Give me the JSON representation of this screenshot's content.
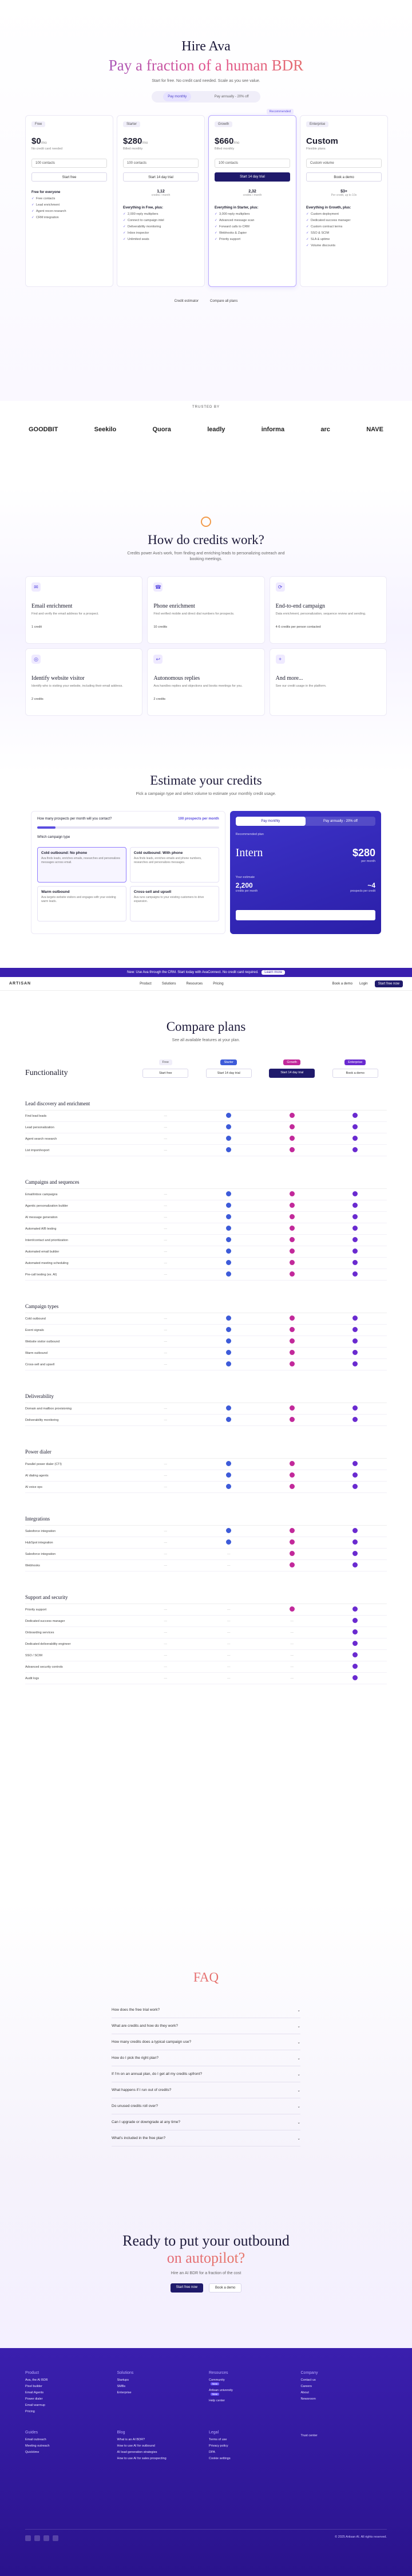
{
  "hero": {
    "title": "Hire Ava",
    "subtitle": "Pay a fraction of a human BDR",
    "description": "Start for free. No credit card needed. Scale as you see value.",
    "toggle_monthly": "Pay monthly",
    "toggle_annual": "Pay annually - 20% off",
    "recommended": "Recommended"
  },
  "plans": [
    {
      "tag": "Free",
      "price": "$0",
      "unit": "/mo",
      "sub": "No credit card needed",
      "select": "100 contacts",
      "cta": "Start free",
      "credits": "",
      "credits_sub": "",
      "feat_title": "Free for everyone",
      "features": [
        "Free contacts",
        "Lead enrichment",
        "Agent recon research",
        "CRM integration"
      ]
    },
    {
      "tag": "Starter",
      "price": "$280",
      "unit": "/mo",
      "sub": "Billed monthly",
      "select": "100 contacts",
      "cta": "Start 14 day trial",
      "credits": "1,12",
      "credits_sub": "credits / month",
      "feat_title": "Everything in Free, plus:",
      "features": [
        "2,000 reply multipliers",
        "Connect to campaign intel",
        "Deliverability monitoring",
        "Inbox inspector",
        "Unlimited seats"
      ]
    },
    {
      "tag": "Growth",
      "price": "$660",
      "unit": "/mo",
      "sub": "Billed monthly",
      "select": "100 contacts",
      "cta": "Start 14 day trial",
      "credits": "2,32",
      "credits_sub": "credits / month",
      "feat_title": "Everything in Starter, plus:",
      "features": [
        "3,000 reply multipliers",
        "Advanced message scan",
        "Forward calls to CRM",
        "Webhooks & Zapier",
        "Priority support"
      ]
    },
    {
      "tag": "Enterprise",
      "price": "Custom",
      "unit": "",
      "sub": "Flexible plans",
      "select": "Custom volume",
      "cta": "Book a demo",
      "credits": "$3+",
      "credits_sub": "Per credit, up to 10x",
      "feat_title": "Everything in Growth, plus:",
      "features": [
        "Custom deployment",
        "Dedicated success manager",
        "Custom contract terms",
        "SSO & SCIM",
        "SLA & uptime",
        "Volume discounts"
      ]
    }
  ],
  "below_plans": [
    "Credit estimator",
    "Compare all plans"
  ],
  "logos": {
    "title": "TRUSTED BY",
    "items": [
      "GOODBIT",
      "Seekilo",
      "Quora",
      "leadly",
      "informa",
      "arc",
      "NAVE"
    ]
  },
  "credits_section": {
    "title": "How do credits work?",
    "description": "Credits power Ava's work, from finding and enriching leads to personalizing outreach and booking meetings.",
    "cards": [
      {
        "icon": "✉",
        "title": "Email enrichment",
        "desc": "Find and verify the email address for a prospect.",
        "cost": "1 credit"
      },
      {
        "icon": "☎",
        "title": "Phone enrichment",
        "desc": "Find verified mobile and direct dial numbers for prospects.",
        "cost": "10 credits"
      },
      {
        "icon": "⟳",
        "title": "End-to-end campaign",
        "desc": "Data enrichment, personalization, sequence review and sending.",
        "cost": "4-6 credits per person contacted"
      },
      {
        "icon": "◎",
        "title": "Identify website visitor",
        "desc": "Identify who is visiting your website, including their email address.",
        "cost": "2 credits"
      },
      {
        "icon": "↩",
        "title": "Autonomous replies",
        "desc": "Ava handles replies and objections and books meetings for you.",
        "cost": "2 credits"
      },
      {
        "icon": "+",
        "title": "And more...",
        "desc": "See our credit usage in the platform.",
        "cost": ""
      }
    ]
  },
  "estimate": {
    "title": "Estimate your credits",
    "description": "Pick a campaign type and select volume to estimate your monthly credit usage.",
    "q1": "How many prospects per month will you contact?",
    "q1_value": "100 prospects per month",
    "slider_fraction": 0.1,
    "q2": "Which campaign type",
    "options": [
      {
        "title": "Cold outbound: No phone",
        "desc": "Ava finds leads, enriches emails, researches and personalizes messages across email."
      },
      {
        "title": "Cold outbound: With phone",
        "desc": "Ava finds leads, enriches emails and phone numbers, researches and personalizes messages."
      },
      {
        "title": "Warm outbound",
        "desc": "Ava targets website visitors and engages with your existing warm leads."
      },
      {
        "title": "Cross-sell and upsell",
        "desc": "Ava runs campaigns to your existing customers to drive expansion."
      }
    ],
    "tab_monthly": "Pay monthly",
    "tab_annual": "Pay annually - 20% off",
    "rec_label": "Recommended plan",
    "rec_plan": "Intern",
    "rec_price": "$280",
    "rec_price_sub": "per month",
    "estimate_label": "Your estimate",
    "estimate_value": "2,200",
    "estimate_sub": "credits per month",
    "estimate_multiplier": "~4",
    "multiplier_sub": "prospects per credit"
  },
  "banner": {
    "text": "New: Use Ava through the CRM. Start today with AvaConnect. No credit card required.",
    "cta": "Learn more"
  },
  "nav": {
    "logo": "ARTISAN",
    "links": [
      "Product",
      "Solutions",
      "Resources",
      "Pricing"
    ],
    "book": "Book a demo",
    "login": "Login",
    "start": "Start free now"
  },
  "compare": {
    "title": "Compare plans",
    "description": "See all available features at your plan.",
    "functionality": "Functionality",
    "columns": [
      {
        "label": "Free",
        "cta": "Start free"
      },
      {
        "label": "Starter",
        "cta": "Start 14 day trial"
      },
      {
        "label": "Growth",
        "cta": "Start 14 day trial"
      },
      {
        "label": "Enterprise",
        "cta": "Book a demo"
      }
    ],
    "groups": [
      {
        "title": "Lead discovery and enrichment",
        "rows": [
          {
            "name": "Find lead leads",
            "v": [
              0,
              1,
              1,
              1
            ]
          },
          {
            "name": "Lead personalization",
            "v": [
              0,
              1,
              1,
              1
            ]
          },
          {
            "name": "Agent search research",
            "v": [
              0,
              1,
              1,
              1
            ]
          },
          {
            "name": "List import/export",
            "v": [
              0,
              1,
              1,
              1
            ]
          }
        ]
      },
      {
        "title": "Campaigns and sequences",
        "rows": [
          {
            "name": "Email/inbox campaigns",
            "v": [
              0,
              1,
              1,
              1
            ]
          },
          {
            "name": "Agentic personalization builder",
            "v": [
              0,
              1,
              1,
              1
            ]
          },
          {
            "name": "AI message generation",
            "v": [
              0,
              1,
              1,
              1
            ]
          },
          {
            "name": "Automated A/B testing",
            "v": [
              0,
              1,
              1,
              1
            ]
          },
          {
            "name": "Intent/contact and prioritization",
            "v": [
              0,
              1,
              1,
              1
            ]
          },
          {
            "name": "Automated email builder",
            "v": [
              0,
              1,
              1,
              1
            ]
          },
          {
            "name": "Automated meeting scheduling",
            "v": [
              0,
              1,
              1,
              1
            ]
          },
          {
            "name": "Pre-call testing (ex. AI)",
            "v": [
              0,
              1,
              1,
              1
            ]
          }
        ]
      },
      {
        "title": "Campaign types",
        "rows": [
          {
            "name": "Cold outbound",
            "v": [
              0,
              1,
              1,
              1
            ]
          },
          {
            "name": "Event signals",
            "v": [
              0,
              1,
              1,
              1
            ]
          },
          {
            "name": "Website visitor outbound",
            "v": [
              0,
              1,
              1,
              1
            ]
          },
          {
            "name": "Warm outbound",
            "v": [
              0,
              1,
              1,
              1
            ]
          },
          {
            "name": "Cross-sell and upsell",
            "v": [
              0,
              1,
              1,
              1
            ]
          }
        ]
      },
      {
        "title": "Deliverability",
        "rows": [
          {
            "name": "Domain and mailbox provisioning",
            "v": [
              0,
              1,
              1,
              1
            ]
          },
          {
            "name": "Deliverability monitoring",
            "v": [
              0,
              1,
              1,
              1
            ]
          }
        ]
      },
      {
        "title": "Power dialer",
        "rows": [
          {
            "name": "Parallel power dialer (CTI)",
            "v": [
              0,
              1,
              1,
              1
            ]
          },
          {
            "name": "AI dialing agents",
            "v": [
              0,
              1,
              1,
              1
            ]
          },
          {
            "name": "AI voice ops",
            "v": [
              0,
              1,
              1,
              1
            ]
          }
        ]
      },
      {
        "title": "Integrations",
        "rows": [
          {
            "name": "Salesforce integration",
            "v": [
              0,
              1,
              1,
              1
            ]
          },
          {
            "name": "HubSpot integration",
            "v": [
              0,
              1,
              1,
              1
            ]
          },
          {
            "name": "Salesforce integration",
            "v": [
              0,
              0,
              1,
              1
            ]
          },
          {
            "name": "Webhooks",
            "v": [
              0,
              0,
              1,
              1
            ]
          }
        ]
      },
      {
        "title": "Support and security",
        "rows": [
          {
            "name": "Priority support",
            "v": [
              0,
              0,
              1,
              1
            ]
          },
          {
            "name": "Dedicated success manager",
            "v": [
              0,
              0,
              0,
              1
            ]
          },
          {
            "name": "Onboarding services",
            "v": [
              0,
              0,
              0,
              1
            ]
          },
          {
            "name": "Dedicated deliverability engineer",
            "v": [
              0,
              0,
              0,
              1
            ]
          },
          {
            "name": "SSO / SCIM",
            "v": [
              0,
              0,
              0,
              1
            ]
          },
          {
            "name": "Advanced security controls",
            "v": [
              0,
              0,
              0,
              1
            ]
          },
          {
            "name": "Audit logs",
            "v": [
              0,
              0,
              0,
              1
            ]
          }
        ]
      }
    ]
  },
  "faq": {
    "title": "FAQ",
    "items": [
      "How does the free trial work?",
      "What are credits and how do they work?",
      "How many credits does a typical campaign use?",
      "How do I pick the right plan?",
      "If I'm on an annual plan, do I get all my credits upfront?",
      "What happens if I run out of credits?",
      "Do unused credits roll over?",
      "Can I upgrade or downgrade at any time?",
      "What's included in the free plan?"
    ]
  },
  "cta": {
    "line1": "Ready to put your outbound",
    "line2": "on autopilot?",
    "description": "Hire an AI BDR for a fraction of the cost",
    "primary": "Start free now",
    "secondary": "Book a demo"
  },
  "footer": {
    "columns": [
      {
        "title": "Product",
        "items": [
          "Ava, the AI BDR",
          "Pixel builder",
          "Email Agents",
          "Power dialer",
          "Email warmup",
          "Pricing"
        ]
      },
      {
        "title": "Solutions",
        "items": [
          "Startups",
          "SMBs",
          "Enterprise"
        ]
      },
      {
        "title": "Resources",
        "items": [
          "Community",
          "Artisan university",
          "Help center"
        ]
      },
      {
        "title": "Company",
        "items": [
          "Contact us",
          "Careers",
          "About",
          "Newsroom"
        ]
      }
    ],
    "columns2": [
      {
        "title": "Guides",
        "items": [
          "Email outreach",
          "Meeting outreach",
          "Quicktime"
        ]
      },
      {
        "title": "Blog",
        "items": [
          "What is an AI BDR?",
          "How to use AI for outbound",
          "AI lead generation strategies",
          "How to use AI for sales prospecting"
        ]
      },
      {
        "title": "Legal",
        "items": [
          "Terms of use",
          "Privacy policy",
          "DPA",
          "Cookie settings"
        ]
      },
      {
        "title": "",
        "items": [
          "Trust center"
        ]
      }
    ],
    "badges": [
      "New",
      "New"
    ],
    "copyright": "© 2025 Artisan AI. All rights reserved."
  },
  "colors": {
    "brand": "#3a1fae",
    "accent_blue": "#3d5bd9",
    "accent_pink": "#c2299b",
    "accent_purple": "#6a2ad0"
  }
}
